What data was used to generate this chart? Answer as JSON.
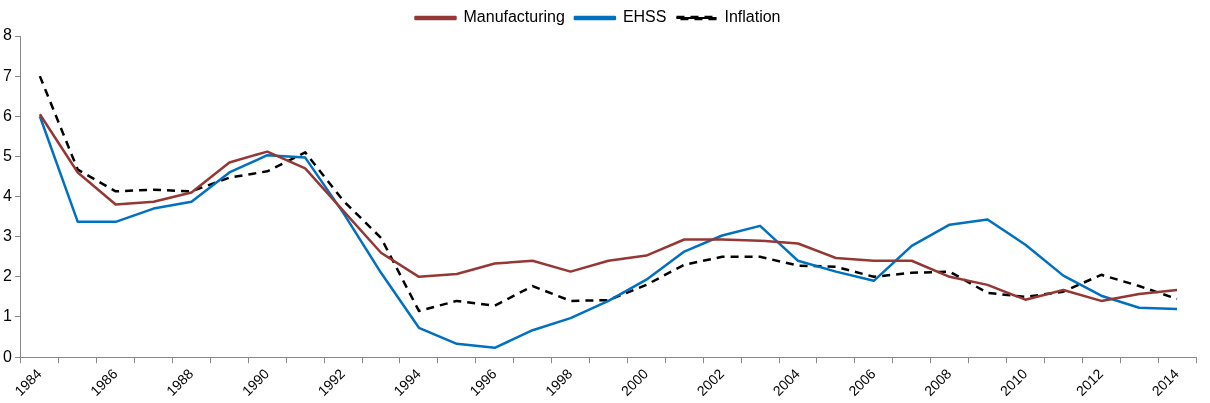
{
  "chart_data": {
    "type": "line",
    "categories": [
      "1984",
      null,
      "1986",
      null,
      "1988",
      null,
      "1990",
      null,
      "1992",
      null,
      "1994",
      null,
      "1996",
      null,
      "1998",
      null,
      "2000",
      null,
      "2002",
      null,
      "2004",
      null,
      "2006",
      null,
      "2008",
      null,
      "2010",
      null,
      "2012",
      null,
      "2014"
    ],
    "series": [
      {
        "name": "Manufacturing",
        "color": "#953735",
        "line_style": "solid",
        "values": [
          6.05,
          4.6,
          3.8,
          3.87,
          4.1,
          4.85,
          5.12,
          4.7,
          3.65,
          2.6,
          2.0,
          2.07,
          2.33,
          2.4,
          2.13,
          2.4,
          2.53,
          2.93,
          2.93,
          2.9,
          2.83,
          2.47,
          2.4,
          2.4,
          2.0,
          1.8,
          1.43,
          1.67,
          1.4,
          1.57,
          1.67
        ]
      },
      {
        "name": "EHSS",
        "color": "#0070c0",
        "line_style": "solid",
        "values": [
          6.0,
          3.37,
          3.37,
          3.7,
          3.87,
          4.6,
          5.03,
          4.97,
          3.6,
          2.1,
          0.73,
          0.33,
          0.23,
          0.67,
          0.97,
          1.4,
          1.93,
          2.63,
          3.03,
          3.27,
          2.4,
          2.13,
          1.9,
          2.77,
          3.3,
          3.43,
          2.8,
          2.03,
          1.53,
          1.23,
          1.2
        ]
      },
      {
        "name": "Inflation",
        "color": "#000000",
        "line_style": "dashed",
        "values": [
          7.0,
          4.67,
          4.13,
          4.17,
          4.13,
          4.47,
          4.63,
          5.1,
          3.9,
          2.97,
          1.15,
          1.4,
          1.28,
          1.77,
          1.4,
          1.42,
          1.8,
          2.3,
          2.5,
          2.5,
          2.28,
          2.25,
          2.0,
          2.1,
          2.13,
          1.6,
          1.5,
          1.63,
          2.05,
          1.77,
          1.45
        ]
      }
    ],
    "ylim": [
      0,
      8
    ],
    "yticks": [
      0,
      1,
      2,
      3,
      4,
      5,
      6,
      7,
      8
    ],
    "grid": false,
    "legend": "top",
    "marker": "none"
  }
}
